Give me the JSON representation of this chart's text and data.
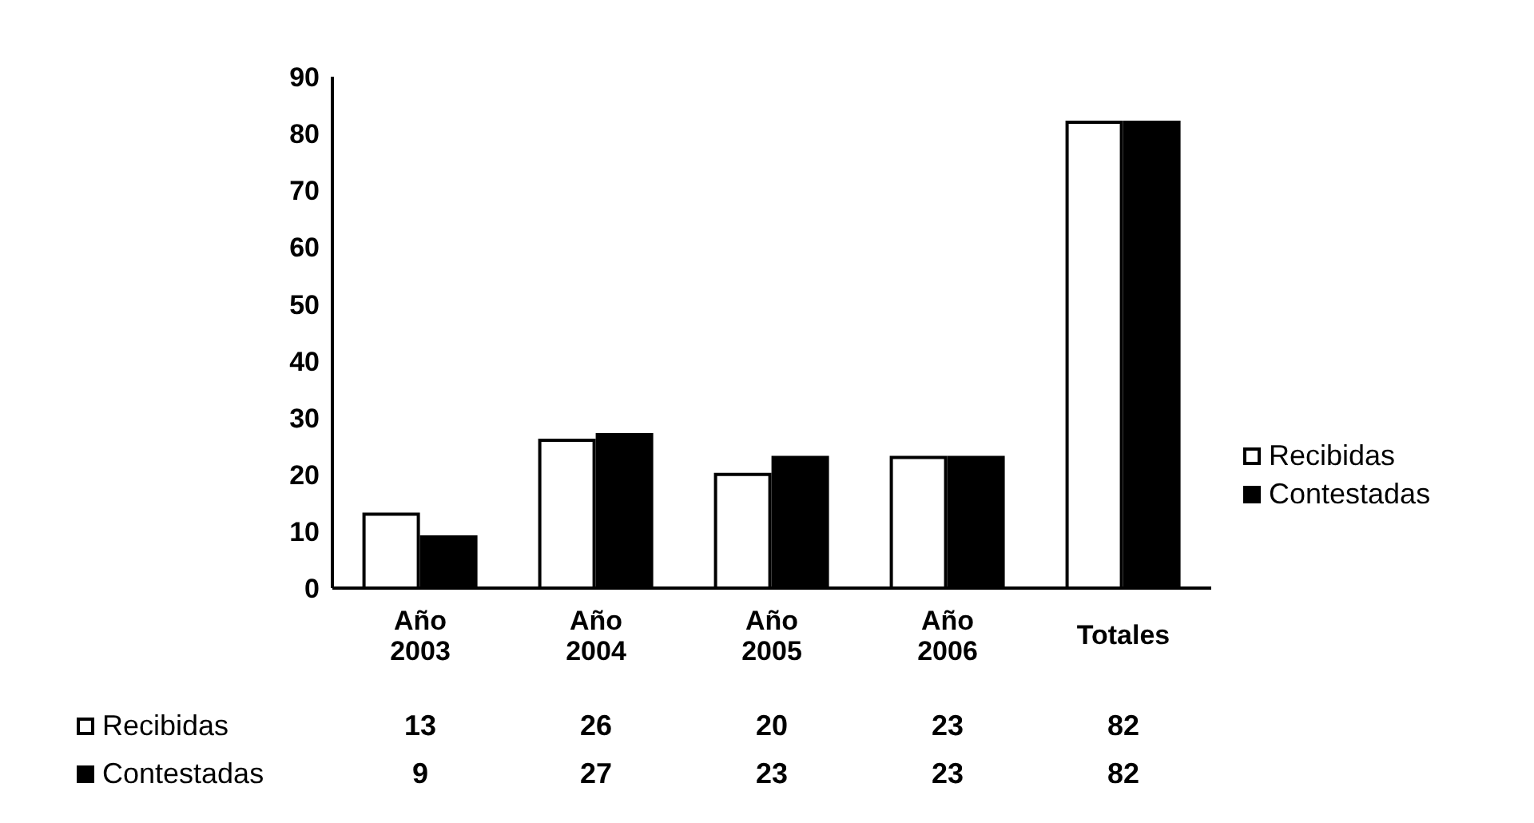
{
  "chart_data": {
    "type": "bar",
    "categories": [
      "Año 2003",
      "Año 2004",
      "Año 2005",
      "Año 2006",
      "Totales"
    ],
    "series": [
      {
        "name": "Recibidas",
        "color": "#ffffff",
        "values": [
          13,
          26,
          20,
          23,
          82
        ]
      },
      {
        "name": "Contestadas",
        "color": "#000000",
        "values": [
          9,
          27,
          23,
          23,
          82
        ]
      }
    ],
    "ylim": [
      0,
      90
    ],
    "yticks": [
      0,
      10,
      20,
      30,
      40,
      50,
      60,
      70,
      80,
      90
    ],
    "grid": false,
    "legend": "right",
    "data_labels": true
  }
}
